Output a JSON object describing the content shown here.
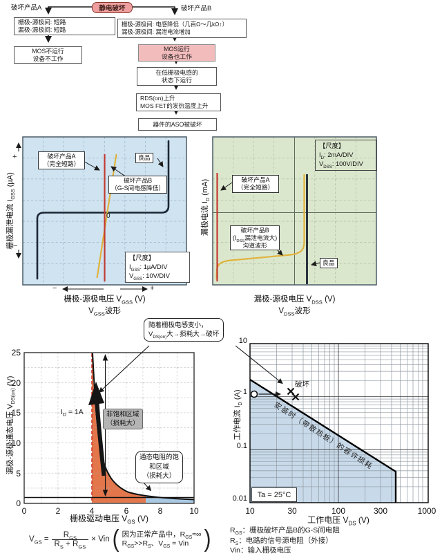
{
  "flowchart": {
    "trigger": "静电破坏",
    "branch_a_label": "破坏产品A",
    "branch_b_label": "破坏产品B",
    "box_a1_line1": "栅极-源极间: 短路",
    "box_a1_line2": "漏极-源极间: 短路",
    "box_a2_line1": "MOS不运行",
    "box_a2_line2": "设备不工作",
    "box_b1_line1": "栅极-源极间: 电感降低（几百Ω～几kΩ↑）",
    "box_b1_line2": "漏极-源极间: 漏泄电流增加",
    "box_b2_line1": "MOS运行",
    "box_b2_line2": "设备也工作",
    "box_b3_line1": "在低栅极电感的",
    "box_b3_line2": "状态下运行",
    "box_b4_line1": "RDS(on)上升",
    "box_b4_line2": "MOS FET的发热温度上升",
    "box_b5": "器件的ASO被破坏"
  },
  "gss_chart": {
    "y_axis_label": "栅极漏泄电流  I~GSS~  (µA)",
    "y_plus": "+",
    "y_minus": "−",
    "x_minus": "−",
    "x_plus": "+",
    "zero": "0",
    "label_a_line1": "破坏产品A",
    "label_a_line2": "（完全短路）",
    "label_good": "良品",
    "label_b_line1": "破坏产品B",
    "label_b_line2": "（G-S间电感降低）",
    "scale_title": "【尺度】",
    "scale_line1": "I~GSS~:  1µA/DIV",
    "scale_line2": "V~GSS~:  10V/DIV",
    "x_axis_label": "栅极-源极电压   V~GSS~   (V)",
    "x_axis_sub": "V~GSS~波形"
  },
  "dss_chart": {
    "y_axis_label": "漏极电流  I~D~  (mA)",
    "scale_title": "【尺度】",
    "scale_line1": "I~D~:  2mA/DIV",
    "scale_line2": "V~DSS~:  100V/DIV",
    "label_a_line1": "破坏产品A",
    "label_a_line2": "（完全短路）",
    "label_b_line1": "破坏产品B",
    "label_b_line2": "(I~DSS~漏泄电流大)",
    "label_b_line3": "沟道波形",
    "label_good": "良品",
    "x_axis_label": "漏极-源极电压   V~DSS~   (V)",
    "x_axis_sub": "V~DSS~波形"
  },
  "callout": {
    "line1": "随着栅极电感变小，",
    "line2": "V~DS(on)~大→损耗大→破坏"
  },
  "vgs_chart": {
    "y_axis_label": "漏极-源极通态电压  V~DS(on)~  (V)",
    "y_ticks": [
      "25",
      "20",
      "15",
      "10",
      "5",
      "0"
    ],
    "x_ticks": [
      "0",
      "2",
      "4",
      "6",
      "8",
      "10"
    ],
    "x_axis_label": "栅极驱动电压   V~GS~   (V)",
    "id_label": "I~D~ = 1A",
    "nonsat_line1": "非饱和区域",
    "nonsat_line2": "（损耗大）",
    "sat_line1": "通态电阻的饱",
    "sat_line2": "和区域",
    "sat_line3": "（损耗大）"
  },
  "soa_chart": {
    "y_axis_label": "工作电流  I~D~  (A)",
    "y_ticks": [
      "10",
      "1",
      "0.1",
      "0.01"
    ],
    "x_ticks": [
      "10",
      "30",
      "100",
      "300",
      "1000"
    ],
    "x_axis_label": "工作电压   V~DS~   (V)",
    "destroy_label": "破坏",
    "soa_line_label": "安装时（带散热板）的容许损耗",
    "ta_label": "Ta = 25°C"
  },
  "formula": {
    "lhs": "V~GS~ =",
    "numerator": "R~GS~",
    "denominator": "R~S~ + R~GS~",
    "rhs": "× Vin",
    "note_line1": "因为正常产品中，R~GS~≈∞",
    "note_line2": "R~GS~>>R~S~、V~GS~ = Vin"
  },
  "legend": {
    "line1": "R~GS~：栅极破坏产品B的G-S间电阻",
    "line2": "R~S~：电路的信号源电阻（外接）",
    "line3": "Vin：输入栅极电压"
  },
  "chart_data": [
    {
      "type": "line",
      "title": "VGSS波形",
      "scale": {
        "IGSS": "1µA/DIV",
        "VGSS": "10V/DIV"
      },
      "series": [
        {
          "name": "破坏产品A（完全短路）"
        },
        {
          "name": "破坏产品B（G-S间电感降低）"
        },
        {
          "name": "良品"
        }
      ]
    },
    {
      "type": "line",
      "title": "VDSS波形",
      "scale": {
        "ID": "2mA/DIV",
        "VDSS": "100V/DIV"
      },
      "series": [
        {
          "name": "破坏产品A（完全短路）"
        },
        {
          "name": "破坏产品B（IDSS漏泄电流大）沟道波形"
        },
        {
          "name": "良品"
        }
      ]
    },
    {
      "type": "line",
      "title": "VDS(on) vs VGS",
      "xlabel": "栅极驱动电压 VGS (V)",
      "ylabel": "漏极-源极通态电压 VDS(on) (V)",
      "xlim": [
        0,
        10
      ],
      "ylim": [
        0,
        25
      ],
      "annotations": [
        "ID = 1A",
        "非饱和区域（损耗大）",
        "通态电阻的饱和区域（损耗大）"
      ]
    },
    {
      "type": "line",
      "title": "SOA",
      "xlabel": "工作电压 VDS (V)",
      "ylabel": "工作电流 ID (A)",
      "xlim": [
        10,
        1000
      ],
      "ylim": [
        0.01,
        10
      ],
      "log": true,
      "points": [
        {
          "x": 10,
          "y": 1,
          "marker": "circle"
        },
        {
          "x": 28,
          "y": 1.3,
          "marker": "x",
          "label": "破坏"
        }
      ],
      "annotations": [
        "安装时（带散热板）的容许损耗",
        "Ta = 25°C"
      ]
    }
  ],
  "colors": {
    "trigger_box": "#ee9e9e",
    "pink_box": "#f3bcbc",
    "chart1_bg": "#cfe3f1",
    "chart2_bg": "#dbe7cd",
    "trace_red": "#c23b32",
    "trace_yellow": "#e0b33e",
    "trace_dark": "#1c2633",
    "region_orange": "#e4764b",
    "region_blue": "#a9c9e3",
    "soa_shade": "#c8daea"
  }
}
